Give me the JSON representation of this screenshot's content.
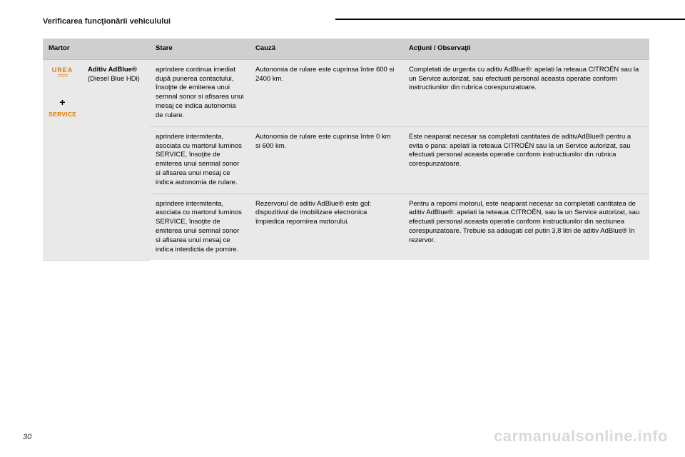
{
  "section_title": "Verificarea funcţionării vehiculului",
  "page_number": "30",
  "watermark": "carmanualsonline.info",
  "icons": {
    "urea_label": "UREA",
    "urea_wave": "≈≈≈",
    "plus": "+",
    "service": "SERVICE"
  },
  "colors": {
    "accent_orange": "#e07a00",
    "header_bg": "#cfcfcf",
    "body_bg": "#e9e9e9"
  },
  "columns": {
    "martor": "Martor",
    "stare": "Stare",
    "cauza": "Cauză",
    "actiuni": "Acţiuni / Observaţii"
  },
  "aditiv": {
    "title": "Aditiv AdBlue®",
    "subtitle": "(Diesel Blue HDi)"
  },
  "rows": [
    {
      "stare": "aprindere continua imediat după punerea contactului, însoţite de emiterea unui semnal sonor si afisarea unui mesaj ce indica autonomia de rulare.",
      "cauza": "Autonomia de rulare este cuprinsa între 600 si 2400 km.",
      "actiuni": "Completati de urgenta cu aditiv AdBlue®: apelati la reteaua CITROËN sau la un Service autorizat, sau efectuati personal aceasta operatie conform instructiunilor din rubrica corespunzatoare."
    },
    {
      "stare": "aprindere intermitenta, asociata cu martorul luminos SERVICE, însoţite de emiterea unui semnal sonor si afisarea unui mesaj ce indica autonomia de rulare.",
      "cauza": "Autonomia de rulare este cuprinsa între 0 km si 600 km.",
      "actiuni": "Este neaparat necesar sa completati cantitatea de aditivAdBlue® pentru a evita o pana: apelati la reteaua CITROËN sau la un Service autorizat, sau efectuati personal aceasta operatie conform instructiunilor din rubrica corespunzatoare."
    },
    {
      "stare": "aprindere intermitenta, asociata cu martorul luminos SERVICE, însoţite de emiterea unui semnal sonor si afisarea unui mesaj ce indica interdictia de pornire.",
      "cauza": "Rezervorul de aditiv AdBlue® este gol: dispozitivul de imobilizare electronica împiedica repornirea motorului.",
      "actiuni": "Pentru a reporni motorul, este neaparat necesar sa completati cantitatea de aditiv AdBlue®: apelati la reteaua CITROËN, sau la un Service autorizat, sau efectuati personal aceasta operatie conform instructiunilor din sectiunea corespunzatoare. Trebuie sa adaugati cel putin 3,8 litri de aditiv AdBlue® în rezervor."
    }
  ]
}
